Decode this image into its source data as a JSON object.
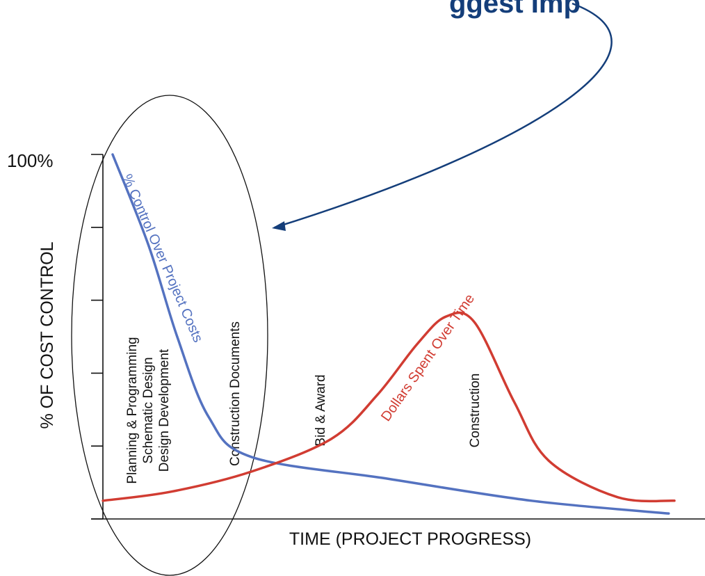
{
  "chart_data": {
    "type": "line",
    "ylabel": "% OF COST CONTROL",
    "xlabel": "TIME (PROJECT PROGRESS)",
    "ytick_labels": [
      "100%"
    ],
    "ylim": [
      0,
      100
    ],
    "xlim": [
      0,
      100
    ],
    "grid": false,
    "legend": "none",
    "callout_text": "ggest Imp",
    "phases": [
      {
        "lines": [
          "Planning & Programming",
          "Schematic Design",
          "Design Development"
        ],
        "x": 4
      },
      {
        "lines": [
          "Construction Documents"
        ],
        "x": 22
      },
      {
        "lines": [
          "Bid & Award"
        ],
        "x": 37
      },
      {
        "lines": [
          "Construction"
        ],
        "x": 64
      }
    ],
    "series": [
      {
        "name": "% Control Over Project Costs",
        "color": "#5472C0",
        "points": [
          [
            1.7,
            100
          ],
          [
            8,
            75
          ],
          [
            13,
            50
          ],
          [
            18.5,
            28
          ],
          [
            26,
            17
          ],
          [
            50,
            11
          ],
          [
            75,
            5
          ],
          [
            99,
            1.5
          ]
        ]
      },
      {
        "name": "Dollars Spent Over Time",
        "color": "#D13C32",
        "points": [
          [
            0,
            5
          ],
          [
            12,
            7.5
          ],
          [
            26,
            13
          ],
          [
            40,
            22
          ],
          [
            48,
            34
          ],
          [
            55,
            48
          ],
          [
            60,
            55.5
          ],
          [
            65,
            54
          ],
          [
            72,
            32
          ],
          [
            78,
            16
          ],
          [
            90,
            6
          ],
          [
            100,
            5
          ]
        ]
      }
    ],
    "colors": {
      "callout": "#143E7A",
      "ellipse": "#111111",
      "axis": "#111111"
    }
  }
}
